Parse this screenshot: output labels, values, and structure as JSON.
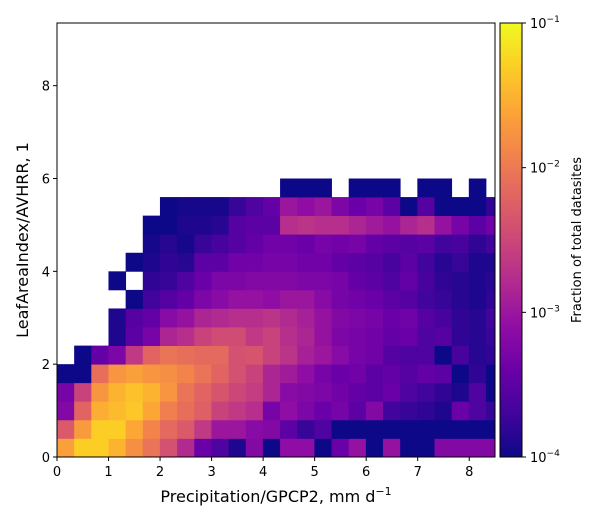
{
  "chart_data": {
    "type": "heatmap",
    "xlabel": "Precipitation/GPCP2,  mm d",
    "xlabel_sup": "−1",
    "ylabel": "LeafAreaIndex/AVHRR,  1",
    "xlim": [
      0,
      8.5
    ],
    "ylim": [
      0,
      9.35
    ],
    "xticks": [
      "0",
      "1",
      "2",
      "3",
      "4",
      "5",
      "6",
      "7",
      "8"
    ],
    "yticks": [
      "0",
      "2",
      "4",
      "6",
      "8"
    ],
    "bin_width_x": 0.333,
    "bin_height_y": 0.4,
    "colorbar": {
      "label": "Fraction of total datasites",
      "scale": "log",
      "range": [
        0.0001,
        0.1
      ],
      "colormap": "plasma",
      "tick_labels": [
        {
          "base": "10",
          "exp": "−4"
        },
        {
          "base": "10",
          "exp": "−3"
        },
        {
          "base": "10",
          "exp": "−2"
        },
        {
          "base": "10",
          "exp": "−1"
        }
      ]
    },
    "note": "rows list log10(fraction) per x-bin, starting at y = 0 (bottom row); null = empty bin",
    "rows": [
      [
        -1.65,
        -1.3,
        -1.3,
        -1.5,
        -1.8,
        -2.05,
        -2.4,
        -2.8,
        -3.4,
        -3.6,
        -3.9,
        -3.2,
        -4,
        -3.1,
        -3.1,
        -4,
        -3.4,
        -3.05,
        -4,
        -3.05,
        -4,
        -4,
        -3.2,
        -3.2,
        -3.2,
        -3.2
      ],
      [
        -2.3,
        -1.7,
        -1.3,
        -1.3,
        -1.6,
        -1.9,
        -2.15,
        -2.3,
        -2.65,
        -3,
        -3,
        -3.15,
        -3.2,
        -3.5,
        -3.75,
        -3.6,
        -4,
        -4,
        -4,
        -4,
        -4,
        -4,
        -4,
        -4,
        -4,
        -4
      ],
      [
        -3.2,
        -2.2,
        -1.55,
        -1.45,
        -1.35,
        -1.6,
        -1.95,
        -2.1,
        -2.25,
        -2.55,
        -2.65,
        -2.75,
        -3.3,
        -3.1,
        -3.25,
        -3.4,
        -3.3,
        -3.5,
        -3.2,
        -3.7,
        -3.75,
        -3.8,
        -3.9,
        -3.4,
        -3.6,
        -3.75
      ],
      [
        -3.3,
        -2.55,
        -1.75,
        -1.5,
        -1.4,
        -1.5,
        -1.75,
        -2.05,
        -2.2,
        -2.35,
        -2.5,
        -2.6,
        -2.85,
        -3.15,
        -3.2,
        -3.25,
        -3.35,
        -3.45,
        -3.5,
        -3.4,
        -3.6,
        -3.7,
        -3.8,
        -3.9,
        -3.6,
        -4
      ],
      [
        -4,
        -4,
        -2.1,
        -1.75,
        -1.65,
        -1.75,
        -1.8,
        -1.9,
        -2.05,
        -2.2,
        -2.4,
        -2.55,
        -2.85,
        -2.95,
        -3.1,
        -3.3,
        -3.4,
        -3.35,
        -3.5,
        -3.45,
        -3.55,
        -3.45,
        -3.5,
        -4,
        -3.8,
        -4
      ],
      [
        null,
        -4,
        -3.45,
        -3.25,
        -2.65,
        -2.2,
        -2.05,
        -2.1,
        -2.15,
        -2.15,
        -2.4,
        -2.35,
        -2.55,
        -2.7,
        -2.9,
        -3,
        -3.15,
        -3.3,
        -3.35,
        -3.55,
        -3.6,
        -3.6,
        -4,
        -3.65,
        -3.85,
        -3.8
      ],
      [
        null,
        null,
        null,
        -3.9,
        -3.5,
        -3.3,
        -2.85,
        -2.75,
        -2.55,
        -2.45,
        -2.45,
        -2.65,
        -2.55,
        -2.75,
        -2.85,
        -3.05,
        -3.25,
        -3.3,
        -3.35,
        -3.45,
        -3.4,
        -3.6,
        -3.55,
        -3.8,
        -3.85,
        -3.75
      ],
      [
        null,
        null,
        null,
        -3.9,
        -3.55,
        -3.45,
        -3.15,
        -3.05,
        -2.85,
        -2.8,
        -2.75,
        -2.75,
        -2.7,
        -2.8,
        -2.9,
        -3.05,
        -3.2,
        -3.25,
        -3.3,
        -3.4,
        -3.35,
        -3.55,
        -3.65,
        -3.8,
        -3.85,
        -3.7
      ],
      [
        null,
        null,
        null,
        null,
        -4,
        -3.7,
        -3.55,
        -3.45,
        -3.25,
        -3.15,
        -3.05,
        -3.05,
        -3.1,
        -3.0,
        -3.0,
        -3.15,
        -3.3,
        -3.35,
        -3.4,
        -3.5,
        -3.55,
        -3.7,
        -3.75,
        -3.85,
        -3.9,
        -3.8
      ],
      [
        null,
        null,
        null,
        -4,
        null,
        -3.8,
        -3.75,
        -3.6,
        -3.4,
        -3.25,
        -3.25,
        -3.2,
        -3.2,
        -3.2,
        -3.25,
        -3.25,
        -3.3,
        -3.45,
        -3.5,
        -3.6,
        -3.45,
        -3.65,
        -3.8,
        -3.85,
        -3.9,
        -3.85
      ],
      [
        null,
        null,
        null,
        null,
        -4,
        -3.9,
        -3.8,
        -3.85,
        -3.5,
        -3.5,
        -3.35,
        -3.35,
        -3.3,
        -3.3,
        -3.35,
        -3.35,
        -3.45,
        -3.5,
        -3.55,
        -3.65,
        -3.5,
        -3.7,
        -3.85,
        -3.75,
        -3.9,
        -3.9
      ],
      [
        null,
        null,
        null,
        null,
        null,
        -3.95,
        -3.85,
        -3.95,
        -3.75,
        -3.65,
        -3.55,
        -3.45,
        -3.35,
        -3.35,
        -3.4,
        -3.3,
        -3.35,
        -3.3,
        -3.45,
        -3.5,
        -3.55,
        -3.5,
        -3.7,
        -3.65,
        -3.8,
        -3.7
      ],
      [
        null,
        null,
        null,
        null,
        null,
        -4,
        -4,
        -3.9,
        -3.9,
        -3.85,
        -3.55,
        -3.5,
        -3.5,
        -2.75,
        -2.7,
        -2.75,
        -2.75,
        -2.85,
        -2.95,
        -3.05,
        -2.85,
        -2.75,
        -3.05,
        -3.3,
        -3.5,
        -3.35
      ],
      [
        null,
        null,
        null,
        null,
        null,
        null,
        -4,
        -3.95,
        -3.95,
        -3.95,
        -3.75,
        -3.6,
        -3.45,
        -3.0,
        -3.1,
        -3.0,
        -3.25,
        -3.4,
        -3.3,
        -3.5,
        -4,
        -3.55,
        -4,
        -4,
        -4,
        -3.8
      ],
      [
        null,
        null,
        null,
        null,
        null,
        null,
        null,
        null,
        null,
        null,
        null,
        null,
        null,
        -4,
        -4,
        -4,
        null,
        -4,
        -4,
        -4,
        null,
        -4,
        -4,
        null,
        -4,
        null
      ]
    ]
  }
}
